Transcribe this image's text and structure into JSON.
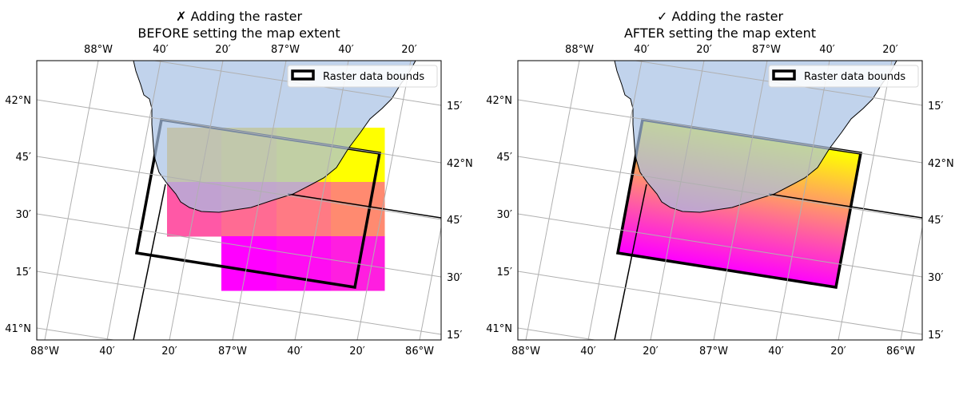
{
  "panels": [
    {
      "title_line1": "✗ Adding the raster",
      "title_line2": "BEFORE setting the map extent",
      "raster_mode": "blocky",
      "legend_label": "Raster data bounds"
    },
    {
      "title_line1": "✓ Adding the raster",
      "title_line2": "AFTER setting the map extent",
      "raster_mode": "smooth",
      "legend_label": "Raster data bounds"
    }
  ],
  "ticks": {
    "top": [
      "88°W",
      "40′",
      "20′",
      "87°W",
      "40′",
      "20′"
    ],
    "bottom": [
      "88°W",
      "40′",
      "20′",
      "87°W",
      "40′",
      "20′",
      "86°W"
    ],
    "left": [
      "42°N",
      "45′",
      "30′",
      "15′",
      "41°N"
    ],
    "right": [
      "15′",
      "42°N",
      "45′",
      "30′",
      "15′"
    ]
  },
  "raster_cells": [
    [
      "#ffc83a",
      "#ffdb25",
      "#fff00f",
      "#ffff00"
    ],
    [
      null,
      "#ff6b93",
      "#ff7a84",
      "#ff8a70"
    ],
    [
      null,
      "#ff00ff",
      "#ff0cf2",
      "#ff1ee0"
    ]
  ],
  "raster_cells_row2_col1": "#ff58a6",
  "colors": {
    "lake": "#a6c0e4",
    "gridline": "#b0b0b0",
    "bounds": "#000000",
    "colormap_top": "#ffff00",
    "colormap_mid": "#ff8080",
    "colormap_bottom": "#ff00ff"
  }
}
